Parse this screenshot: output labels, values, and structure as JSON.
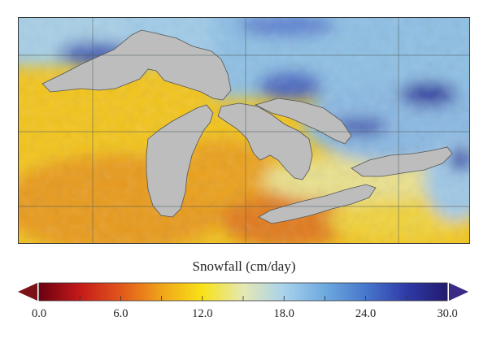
{
  "colorbar": {
    "title": "Snowfall (cm/day)",
    "min": 0.0,
    "max": 30.0,
    "ticks": [
      "0.0",
      "6.0",
      "12.0",
      "18.0",
      "24.0",
      "30.0"
    ],
    "tick_values": [
      0,
      6,
      12,
      18,
      24,
      30
    ],
    "stops": [
      {
        "v": 0,
        "color": "#6b0010"
      },
      {
        "v": 3,
        "color": "#c41a1a"
      },
      {
        "v": 6,
        "color": "#e2561a"
      },
      {
        "v": 9,
        "color": "#f0a41a"
      },
      {
        "v": 12,
        "color": "#f8e218"
      },
      {
        "v": 15,
        "color": "#e4e8b4"
      },
      {
        "v": 18,
        "color": "#a9d2ec"
      },
      {
        "v": 21,
        "color": "#6ea9df"
      },
      {
        "v": 24,
        "color": "#4777cc"
      },
      {
        "v": 27,
        "color": "#2f3aa8"
      },
      {
        "v": 30,
        "color": "#221a6e"
      }
    ],
    "under_color": "#7a1218",
    "over_color": "#3d2a86"
  },
  "map": {
    "land_color": "#bdbdbd",
    "lake_color": "#c0c0c0",
    "grid_color": "#5a6a6a"
  }
}
